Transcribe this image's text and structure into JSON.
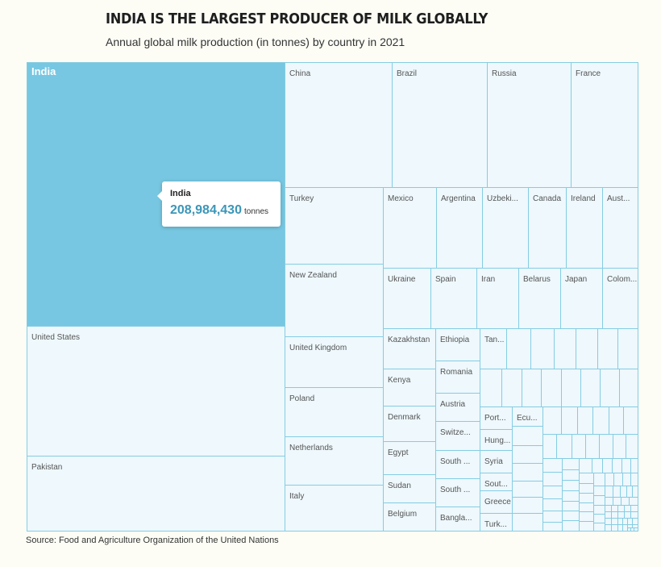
{
  "title": "INDIA IS THE LARGEST PRODUCER OF MILK GLOBALLY",
  "subtitle": "Annual global milk production (in tonnes) by country in 2021",
  "source": "Source: Food and Agriculture Organization of the United Nations",
  "tooltip": {
    "country": "India",
    "value": "208,984,430",
    "unit": "tonnes"
  },
  "chart_data": {
    "type": "treemap",
    "highlighted": "India",
    "colors": {
      "highlight": "#77c7e2",
      "tile": "#eef8fd",
      "border": "#85cde2"
    },
    "labels": [
      "India",
      "United States",
      "Pakistan",
      "China",
      "Brazil",
      "Russia",
      "France",
      "Turkey",
      "Mexico",
      "Argentina",
      "Uzbeki...",
      "Canada",
      "Ireland",
      "Aust...",
      "New Zealand",
      "Ukraine",
      "Spain",
      "Iran",
      "Belarus",
      "Japan",
      "Colom...",
      "United Kingdom",
      "Kazakhstan",
      "Ethiopia",
      "Tan...",
      "Kenya",
      "Romania",
      "Poland",
      "Denmark",
      "Austria",
      "Port...",
      "Ecu...",
      "Switze...",
      "Hung...",
      "Netherlands",
      "Egypt",
      "South ...",
      "Syria",
      "Sout...",
      "Italy",
      "Sudan",
      "South ...",
      "Greece",
      "Belgium",
      "Bangla...",
      "Turk..."
    ]
  }
}
